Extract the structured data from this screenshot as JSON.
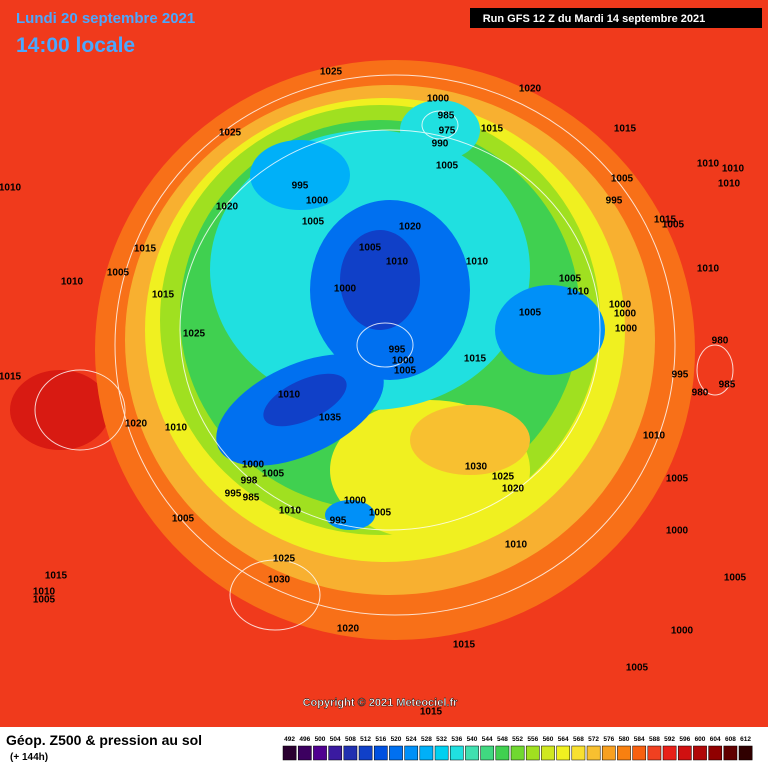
{
  "header": {
    "date": "Lundi 20 septembre 2021",
    "time": "14:00 locale",
    "run": "Run GFS 12 Z du Mardi 14 septembre 2021"
  },
  "copyright": "Copyright © 2021 Meteociel.fr",
  "footer": {
    "title": "Géop. Z500 & pression au sol",
    "lead": "(+ 144h)"
  },
  "scale": {
    "values": [
      492,
      496,
      500,
      504,
      508,
      512,
      516,
      520,
      524,
      528,
      532,
      536,
      540,
      544,
      548,
      552,
      556,
      560,
      564,
      568,
      572,
      576,
      580,
      584,
      588,
      592,
      596,
      600,
      604,
      608,
      612
    ],
    "colors": [
      "#2a0030",
      "#3c0060",
      "#500090",
      "#3a1aa0",
      "#2030b0",
      "#1040c8",
      "#0050e0",
      "#0070f0",
      "#0090f8",
      "#00b0f8",
      "#00d0f0",
      "#20e0e0",
      "#40e0b0",
      "#40d880",
      "#40d050",
      "#70d830",
      "#a0e020",
      "#d0e820",
      "#f0f020",
      "#f8e030",
      "#f8c030",
      "#f8a020",
      "#f88010",
      "#f86010",
      "#f04020",
      "#e82018",
      "#d01010",
      "#b00808",
      "#900000",
      "#600000",
      "#300000"
    ]
  },
  "isobar_labels": [
    1025,
    1020,
    1025,
    1000,
    985,
    975,
    990,
    1015,
    1015,
    1005,
    1010,
    1010,
    1010,
    1005,
    1010,
    995,
    995,
    1000,
    1020,
    1005,
    1020,
    1015,
    1005,
    1015,
    1005,
    1010,
    1010,
    1005,
    1010,
    1005,
    1010,
    1010,
    1000,
    1015,
    1000,
    1005,
    1000,
    1000,
    1025,
    995,
    1000,
    1005,
    1015,
    980,
    995,
    985,
    980,
    1015,
    1010,
    1035,
    1020,
    1010,
    1010,
    1000,
    1005,
    998,
    995,
    985,
    1030,
    1025,
    1020,
    1005,
    1000,
    1010,
    1005,
    1005,
    995,
    1000,
    1010,
    1025,
    1030,
    1015,
    1005,
    1010,
    1005,
    1020,
    1000,
    1015,
    1005,
    1015
  ]
}
